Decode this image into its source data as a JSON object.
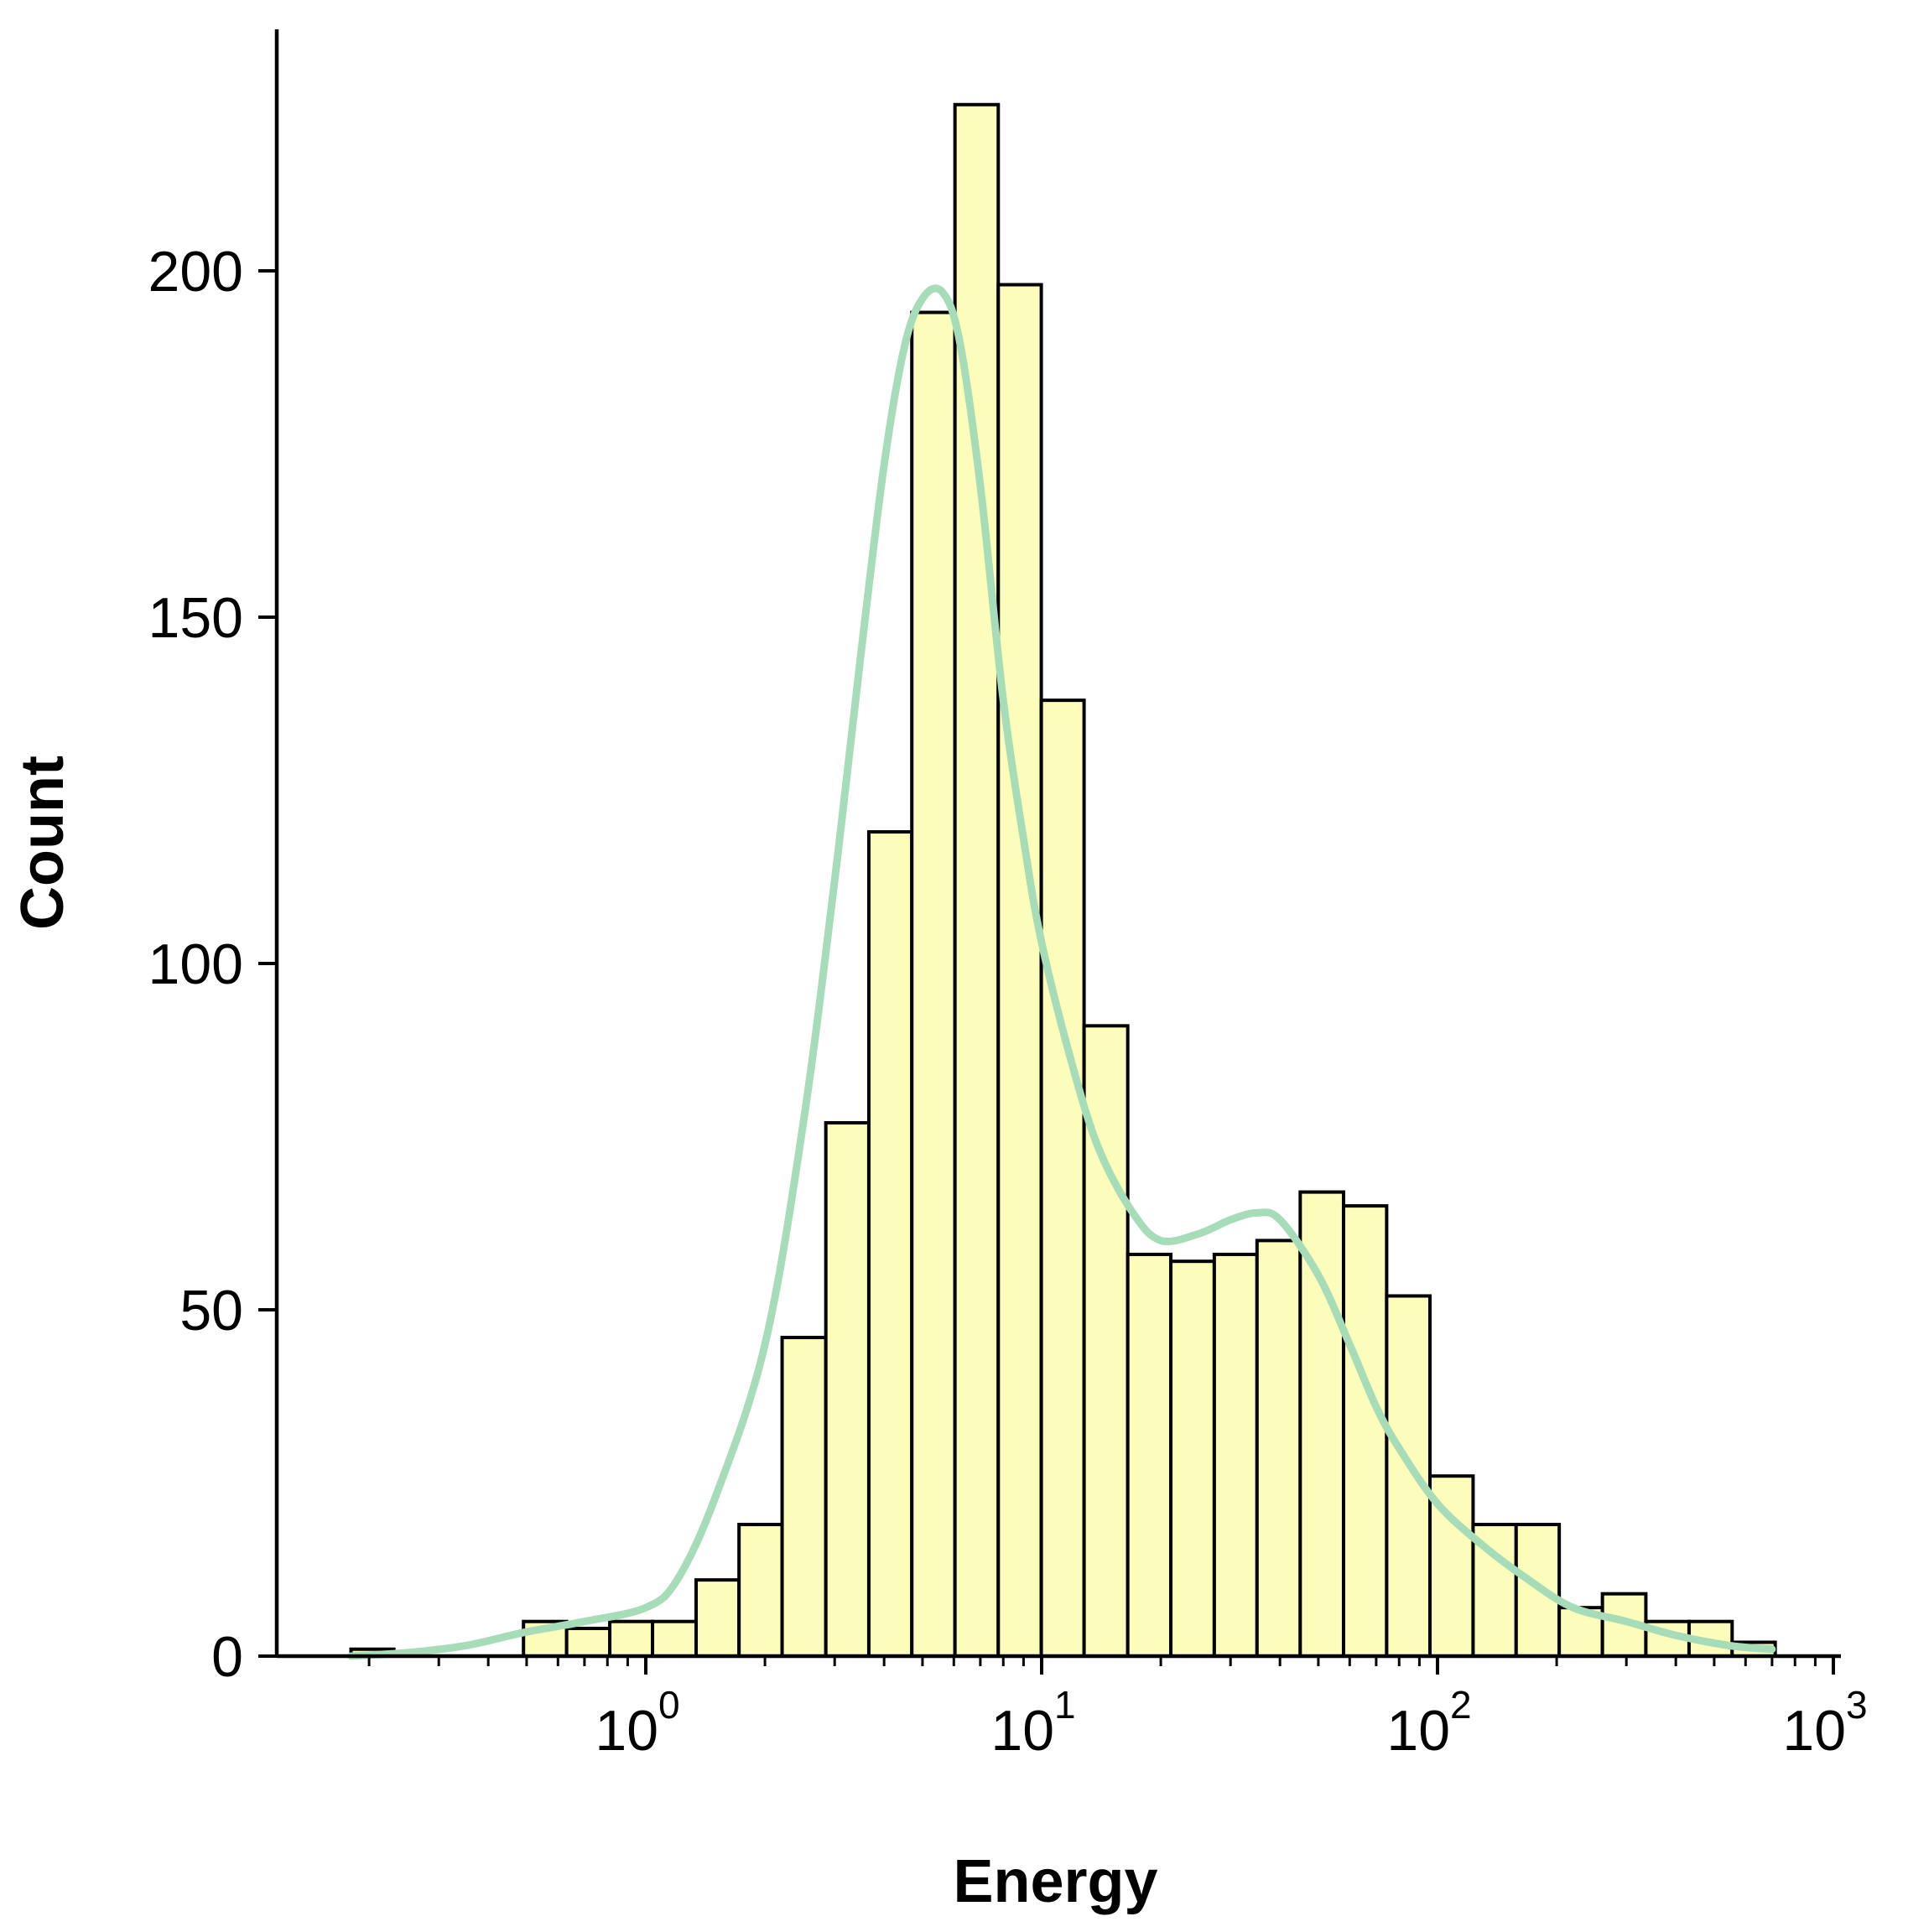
{
  "chart_data": {
    "type": "histogram",
    "x_scale": "log",
    "xlabel": "Energy",
    "ylabel": "Count",
    "xlim": [
      0.12,
      1000
    ],
    "ylim": [
      0,
      235
    ],
    "x_ticks": [
      {
        "value": 1,
        "base": "10",
        "exp": "0"
      },
      {
        "value": 10,
        "base": "10",
        "exp": "1"
      },
      {
        "value": 100,
        "base": "10",
        "exp": "2"
      },
      {
        "value": 1000,
        "base": "10",
        "exp": "3"
      }
    ],
    "y_ticks": [
      0,
      50,
      100,
      150,
      200
    ],
    "bin_edges": [
      0.18,
      0.231,
      0.297,
      0.382,
      0.491,
      0.631,
      0.811,
      1.04,
      1.34,
      1.72,
      2.21,
      2.85,
      3.66,
      4.7,
      6.04,
      7.77,
      9.98,
      12.8,
      16.5,
      21.2,
      27.3,
      35.0,
      45.0,
      57.9,
      74.4,
      95.7,
      123.0,
      158.0,
      203.0,
      261.0,
      336.0,
      432.0,
      555.0,
      713.0
    ],
    "counts": [
      1,
      0,
      0,
      0,
      5,
      4,
      5,
      5,
      11,
      19,
      46,
      77,
      119,
      194,
      224,
      198,
      138,
      91,
      58,
      57,
      58,
      60,
      67,
      65,
      52,
      26,
      19,
      19,
      7,
      9,
      5,
      5,
      2
    ],
    "kde": {
      "x": [
        0.18,
        0.25,
        0.35,
        0.5,
        0.7,
        1.0,
        1.2,
        1.5,
        2.0,
        2.5,
        3.0,
        3.5,
        4.0,
        4.5,
        5.0,
        5.6,
        6.2,
        7.0,
        8.0,
        9.0,
        10.0,
        12.0,
        14.0,
        17.0,
        20.0,
        25.0,
        30.0,
        35.0,
        40.0,
        50.0,
        60.0,
        70.0,
        80.0,
        100.0,
        130.0,
        170.0,
        220.0,
        300.0,
        400.0,
        550.0,
        700.0
      ],
      "y": [
        0,
        0.5,
        1.5,
        3.5,
        5,
        7,
        11,
        23,
        45,
        77,
        112,
        145,
        172,
        189,
        196,
        197,
        190,
        169,
        138,
        118,
        103,
        85,
        73,
        64,
        60,
        61,
        63,
        64,
        63,
        55,
        45,
        36,
        30,
        22,
        16,
        11,
        7,
        5,
        3,
        1.5,
        1
      ]
    },
    "bar_fill": "#fdfdbb",
    "bar_edge": "#000000",
    "kde_color": "#a6dcb8"
  }
}
